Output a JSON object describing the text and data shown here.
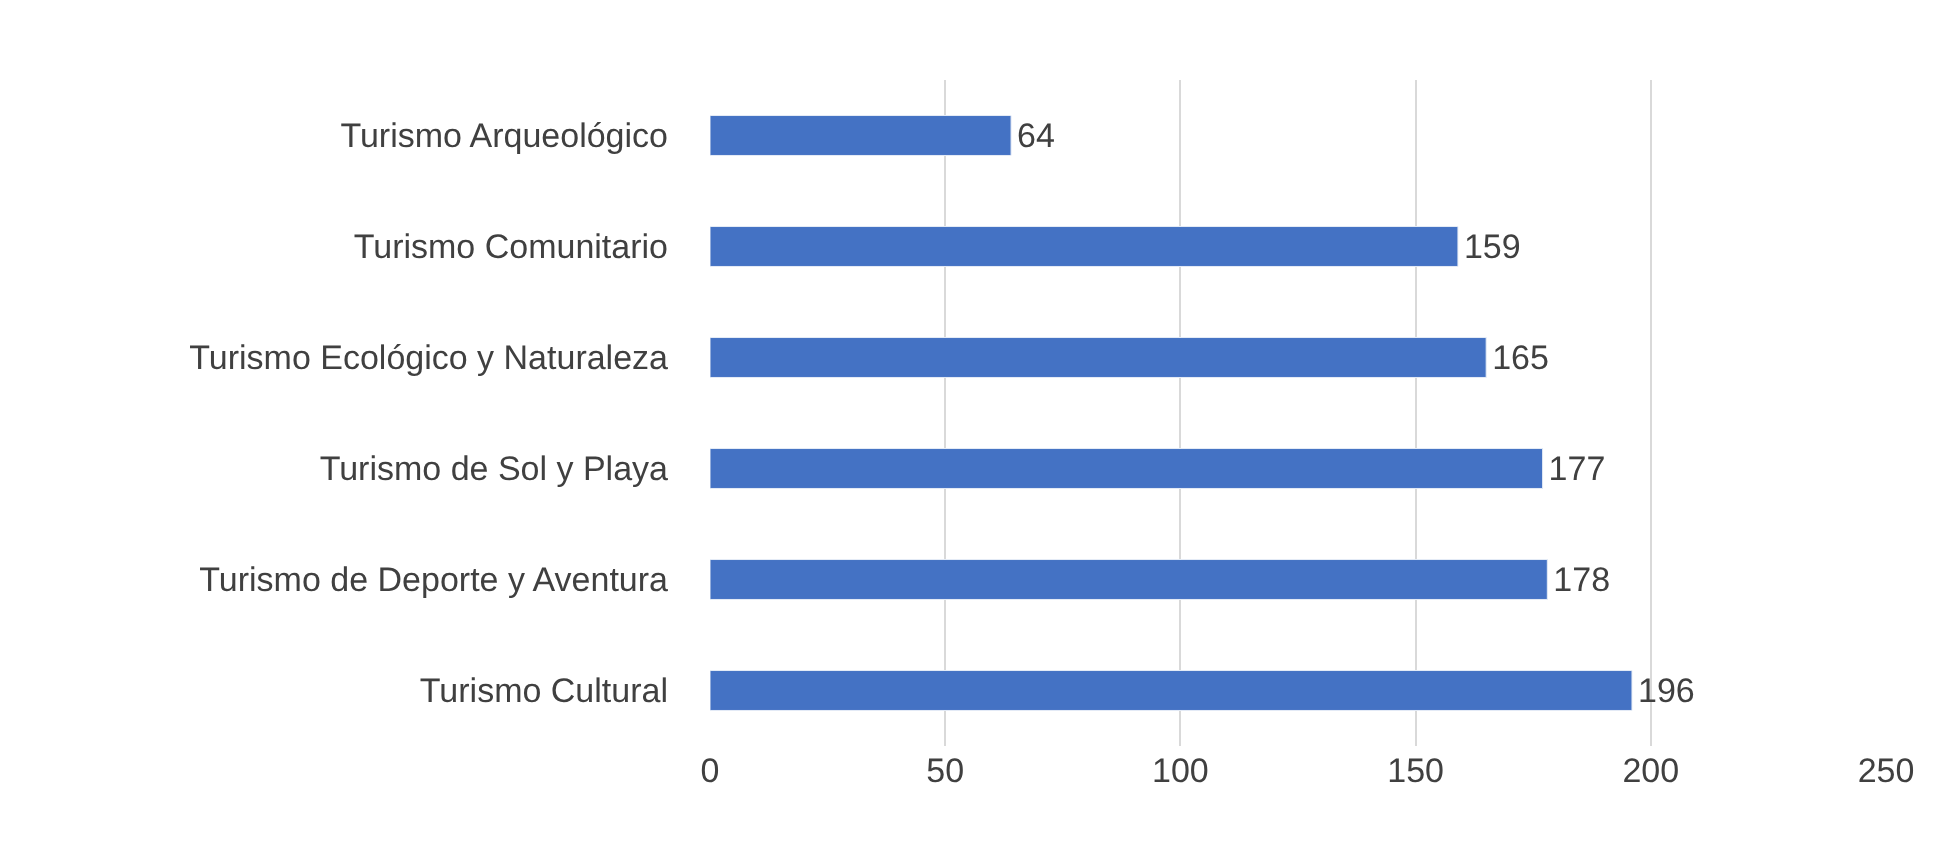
{
  "chart_data": {
    "type": "bar",
    "orientation": "horizontal",
    "categories": [
      "Turismo Arqueológico",
      "Turismo Comunitario",
      "Turismo Ecológico y Naturaleza",
      "Turismo de Sol y Playa",
      "Turismo de Deporte y Aventura",
      "Turismo Cultural"
    ],
    "values": [
      64,
      159,
      165,
      177,
      178,
      196
    ],
    "color": "#4472c4",
    "xlim": [
      0,
      250
    ],
    "xticks": [
      0,
      50,
      100,
      150,
      200,
      250
    ],
    "grid": "x",
    "data_labels": true,
    "legend": false
  }
}
